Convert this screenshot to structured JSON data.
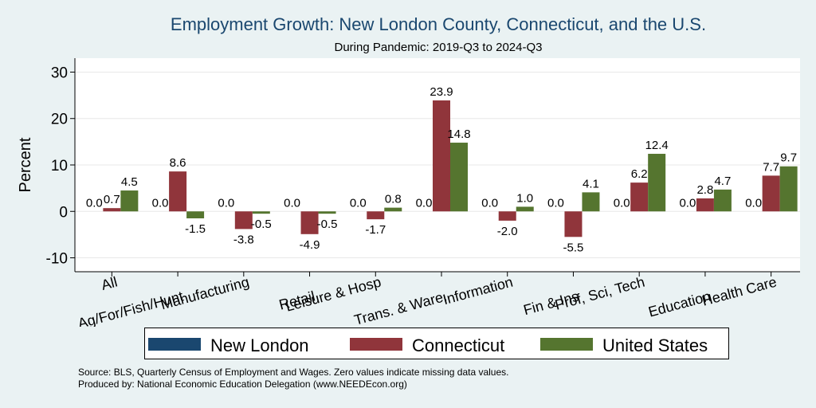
{
  "chart_data": {
    "type": "bar",
    "title": "Employment Growth: New London County, Connecticut, and the U.S.",
    "subtitle": "During Pandemic: 2019-Q3 to 2024-Q3",
    "ylabel": "Percent",
    "xlabel": "",
    "ylim": [
      -13,
      33
    ],
    "yticks": [
      -10,
      0,
      10,
      20,
      30
    ],
    "ytick_labels": [
      "-10",
      "0",
      "10",
      "20",
      "30"
    ],
    "categories": [
      "All",
      "Ag/For/Fish/Hunt",
      "Manufacturing",
      "Retail",
      "Leisure & Hosp",
      "Trans. & Ware.",
      "Information",
      "Fin & Ins",
      "Prof, Sci, Tech",
      "Education",
      "Health Care"
    ],
    "series": [
      {
        "name": "New London",
        "color": "#1a476f",
        "values": [
          0.0,
          0.0,
          0.0,
          0.0,
          0.0,
          0.0,
          0.0,
          0.0,
          0.0,
          0.0,
          0.0
        ],
        "labels": [
          "0.0",
          "0.0",
          "0.0",
          "0.0",
          "0.0",
          "0.0",
          "0.0",
          "0.0",
          "0.0",
          "0.0",
          "0.0"
        ]
      },
      {
        "name": "Connecticut",
        "color": "#90353b",
        "values": [
          0.7,
          8.6,
          -3.8,
          -4.9,
          -1.7,
          23.9,
          -2.0,
          -5.5,
          6.2,
          2.8,
          7.7
        ],
        "labels": [
          "0.7",
          "8.6",
          "-3.8",
          "-4.9",
          "-1.7",
          "23.9",
          "-2.0",
          "-5.5",
          "6.2",
          "2.8",
          "7.7"
        ]
      },
      {
        "name": "United States",
        "color": "#55752f",
        "values": [
          4.5,
          -1.5,
          -0.5,
          -0.5,
          0.8,
          14.8,
          1.0,
          4.1,
          12.4,
          4.7,
          9.7
        ],
        "labels": [
          "4.5",
          "-1.5",
          "-0.5",
          "-0.5",
          "0.8",
          "14.8",
          "1.0",
          "4.1",
          "12.4",
          "4.7",
          "9.7"
        ]
      }
    ],
    "grid": true,
    "legend_position": "bottom"
  },
  "legend": {
    "items": [
      {
        "label": "New London",
        "color": "#1a476f"
      },
      {
        "label": "Connecticut",
        "color": "#90353b"
      },
      {
        "label": "United States",
        "color": "#55752f"
      }
    ]
  },
  "source": {
    "line1": "Source: BLS, Quarterly Census of Employment and Wages. Zero values indicate missing data values.",
    "line2": "Produced by: National Economic Education Delegation (www.NEEDEcon.org)"
  }
}
